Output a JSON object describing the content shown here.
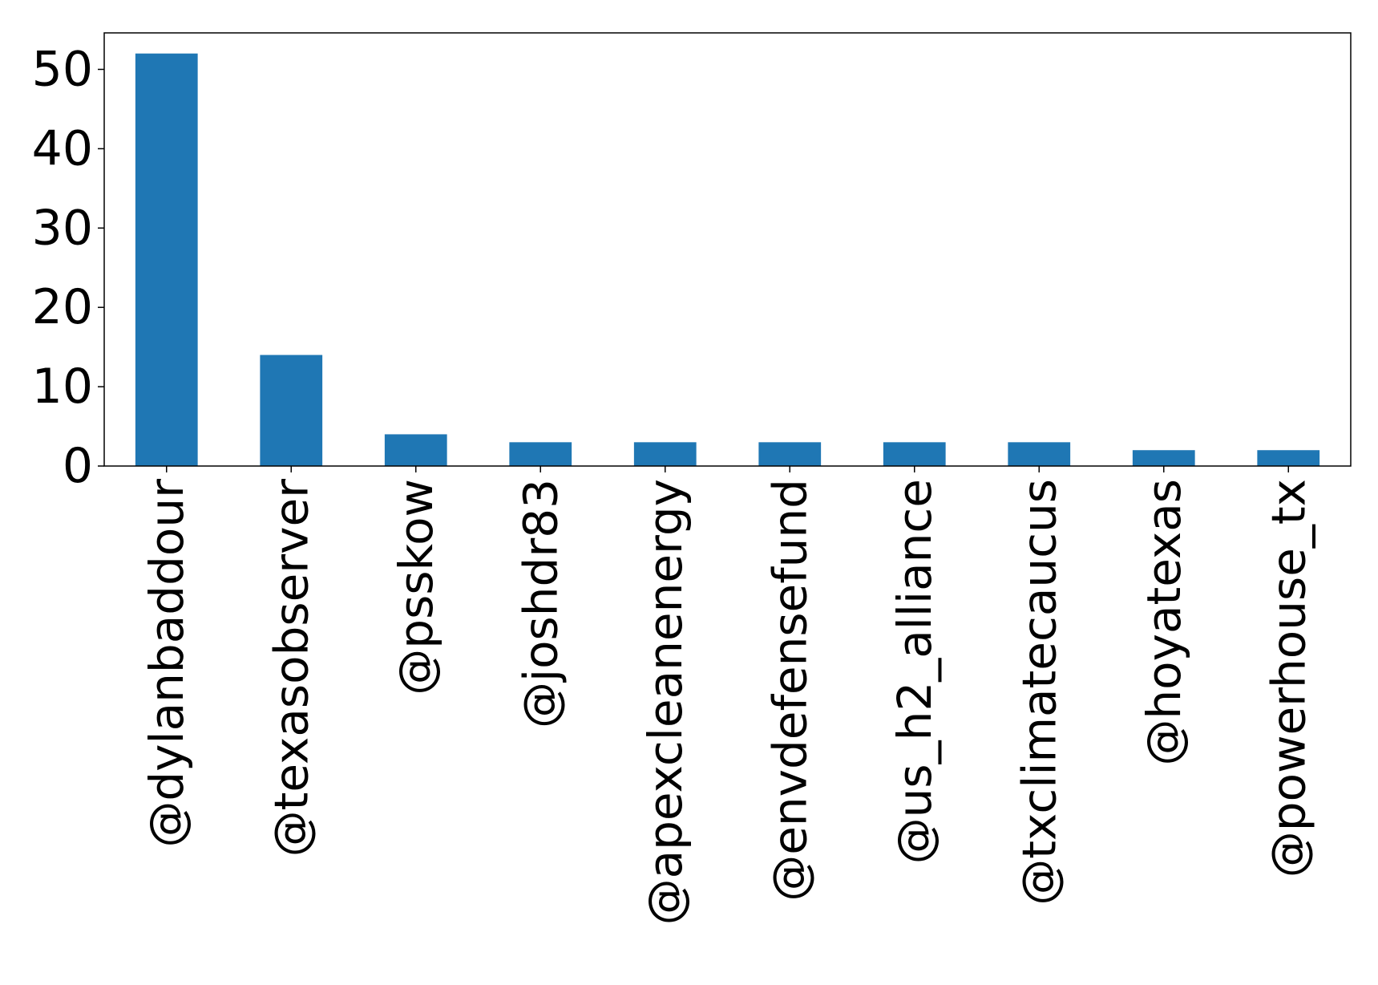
{
  "chart_data": {
    "type": "bar",
    "categories": [
      "@dylanbaddour",
      "@texasobserver",
      "@psskow",
      "@joshdr83",
      "@apexcleanenergy",
      "@envdefensefund",
      "@us_h2_alliance",
      "@txclimatecaucus",
      "@hoyatexas",
      "@powerhouse_tx"
    ],
    "values": [
      52,
      14,
      4,
      3,
      3,
      3,
      3,
      3,
      2,
      2
    ],
    "title": "",
    "xlabel": "",
    "ylabel": "",
    "ylim": [
      0,
      54.6
    ],
    "yticks": [
      0,
      10,
      20,
      30,
      40,
      50
    ],
    "grid": false,
    "legend": "none",
    "colors": {
      "bar": "#1f77b4"
    }
  }
}
